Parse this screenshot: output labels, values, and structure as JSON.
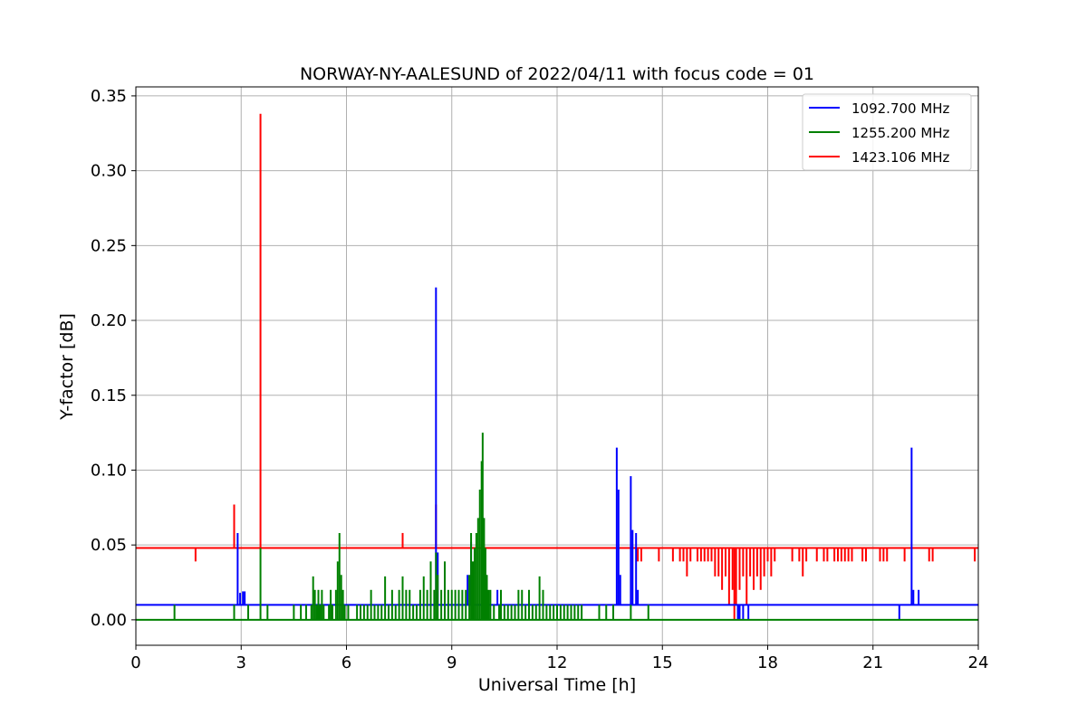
{
  "chart_data": {
    "type": "line",
    "title": "NORWAY-NY-AALESUND of 2022/04/11 with focus code = 01",
    "xlabel": "Universal Time [h]",
    "ylabel": "Y-factor [dB]",
    "xlim": [
      0,
      24
    ],
    "ylim": [
      -0.017,
      0.356
    ],
    "xticks": [
      0,
      3,
      6,
      9,
      12,
      15,
      18,
      21,
      24
    ],
    "xtick_labels": [
      "0",
      "3",
      "6",
      "9",
      "12",
      "15",
      "18",
      "21",
      "24"
    ],
    "yticks": [
      0.0,
      0.05,
      0.1,
      0.15,
      0.2,
      0.25,
      0.3,
      0.35
    ],
    "ytick_labels": [
      "0.00",
      "0.05",
      "0.10",
      "0.15",
      "0.20",
      "0.25",
      "0.30",
      "0.35"
    ],
    "grid": true,
    "legend_position": "top-right",
    "series": [
      {
        "name": "1092.700 MHz",
        "color": "#0000ff",
        "baseline": 0.01,
        "spikes": [
          [
            2.9,
            0.058
          ],
          [
            2.97,
            0.018
          ],
          [
            3.05,
            0.019
          ],
          [
            3.1,
            0.019
          ],
          [
            8.55,
            0.222
          ],
          [
            8.6,
            0.045
          ],
          [
            9.45,
            0.03
          ],
          [
            9.55,
            0.052
          ],
          [
            9.9,
            0.02
          ],
          [
            10.3,
            0.02
          ],
          [
            13.7,
            0.115
          ],
          [
            13.75,
            0.087
          ],
          [
            13.8,
            0.03
          ],
          [
            14.1,
            0.096
          ],
          [
            14.15,
            0.06
          ],
          [
            14.25,
            0.058
          ],
          [
            14.3,
            0.02
          ],
          [
            17.15,
            0.0
          ],
          [
            17.2,
            0.0
          ],
          [
            17.3,
            0.0
          ],
          [
            17.45,
            0.0
          ],
          [
            21.75,
            0.0
          ],
          [
            22.1,
            0.115
          ],
          [
            22.15,
            0.02
          ],
          [
            22.3,
            0.02
          ]
        ]
      },
      {
        "name": "1255.200 MHz",
        "color": "#008000",
        "baseline": 0.0,
        "spikes": [
          [
            1.1,
            0.01
          ],
          [
            2.8,
            0.01
          ],
          [
            3.2,
            0.01
          ],
          [
            3.55,
            0.048
          ],
          [
            3.75,
            0.01
          ],
          [
            4.5,
            0.01
          ],
          [
            4.7,
            0.01
          ],
          [
            4.85,
            0.01
          ],
          [
            5.0,
            0.01
          ],
          [
            5.05,
            0.029
          ],
          [
            5.1,
            0.02
          ],
          [
            5.15,
            0.01
          ],
          [
            5.2,
            0.02
          ],
          [
            5.25,
            0.01
          ],
          [
            5.3,
            0.02
          ],
          [
            5.35,
            0.01
          ],
          [
            5.5,
            0.01
          ],
          [
            5.55,
            0.02
          ],
          [
            5.6,
            0.01
          ],
          [
            5.7,
            0.02
          ],
          [
            5.75,
            0.039
          ],
          [
            5.8,
            0.058
          ],
          [
            5.85,
            0.03
          ],
          [
            5.9,
            0.02
          ],
          [
            5.95,
            0.01
          ],
          [
            6.05,
            0.01
          ],
          [
            6.3,
            0.01
          ],
          [
            6.4,
            0.01
          ],
          [
            6.5,
            0.01
          ],
          [
            6.6,
            0.01
          ],
          [
            6.7,
            0.02
          ],
          [
            6.8,
            0.01
          ],
          [
            6.9,
            0.01
          ],
          [
            7.0,
            0.01
          ],
          [
            7.1,
            0.029
          ],
          [
            7.2,
            0.01
          ],
          [
            7.3,
            0.02
          ],
          [
            7.4,
            0.01
          ],
          [
            7.5,
            0.02
          ],
          [
            7.6,
            0.029
          ],
          [
            7.7,
            0.02
          ],
          [
            7.8,
            0.02
          ],
          [
            7.9,
            0.01
          ],
          [
            8.0,
            0.01
          ],
          [
            8.1,
            0.02
          ],
          [
            8.2,
            0.029
          ],
          [
            8.3,
            0.02
          ],
          [
            8.4,
            0.039
          ],
          [
            8.5,
            0.02
          ],
          [
            8.55,
            0.045
          ],
          [
            8.6,
            0.03
          ],
          [
            8.7,
            0.02
          ],
          [
            8.8,
            0.039
          ],
          [
            8.9,
            0.02
          ],
          [
            9.0,
            0.02
          ],
          [
            9.1,
            0.02
          ],
          [
            9.2,
            0.02
          ],
          [
            9.3,
            0.02
          ],
          [
            9.4,
            0.02
          ],
          [
            9.5,
            0.03
          ],
          [
            9.55,
            0.058
          ],
          [
            9.6,
            0.039
          ],
          [
            9.65,
            0.048
          ],
          [
            9.7,
            0.058
          ],
          [
            9.75,
            0.068
          ],
          [
            9.8,
            0.087
          ],
          [
            9.85,
            0.106
          ],
          [
            9.88,
            0.125
          ],
          [
            9.92,
            0.068
          ],
          [
            9.96,
            0.048
          ],
          [
            10.0,
            0.03
          ],
          [
            10.05,
            0.02
          ],
          [
            10.1,
            0.02
          ],
          [
            10.2,
            0.01
          ],
          [
            10.35,
            0.01
          ],
          [
            10.4,
            0.02
          ],
          [
            10.5,
            0.01
          ],
          [
            10.6,
            0.01
          ],
          [
            10.7,
            0.01
          ],
          [
            10.8,
            0.01
          ],
          [
            10.9,
            0.02
          ],
          [
            11.0,
            0.02
          ],
          [
            11.1,
            0.01
          ],
          [
            11.2,
            0.02
          ],
          [
            11.3,
            0.01
          ],
          [
            11.4,
            0.01
          ],
          [
            11.5,
            0.029
          ],
          [
            11.6,
            0.02
          ],
          [
            11.7,
            0.01
          ],
          [
            11.8,
            0.01
          ],
          [
            11.9,
            0.01
          ],
          [
            12.0,
            0.01
          ],
          [
            12.1,
            0.01
          ],
          [
            12.2,
            0.01
          ],
          [
            12.3,
            0.01
          ],
          [
            12.4,
            0.01
          ],
          [
            12.5,
            0.01
          ],
          [
            12.6,
            0.01
          ],
          [
            12.7,
            0.01
          ],
          [
            13.2,
            0.01
          ],
          [
            13.4,
            0.01
          ],
          [
            13.6,
            0.01
          ],
          [
            14.1,
            0.01
          ],
          [
            14.6,
            0.01
          ]
        ]
      },
      {
        "name": "1423.106 MHz",
        "color": "#ff0000",
        "baseline": 0.048,
        "spikes": [
          [
            1.7,
            0.039
          ],
          [
            2.8,
            0.077
          ],
          [
            3.55,
            0.338
          ],
          [
            7.6,
            0.058
          ],
          [
            8.55,
            0.077
          ],
          [
            14.3,
            0.039
          ],
          [
            14.4,
            0.039
          ],
          [
            14.9,
            0.039
          ],
          [
            15.3,
            0.039
          ],
          [
            15.5,
            0.039
          ],
          [
            15.6,
            0.039
          ],
          [
            15.7,
            0.029
          ],
          [
            15.8,
            0.039
          ],
          [
            16.0,
            0.039
          ],
          [
            16.1,
            0.039
          ],
          [
            16.2,
            0.039
          ],
          [
            16.3,
            0.039
          ],
          [
            16.4,
            0.039
          ],
          [
            16.5,
            0.029
          ],
          [
            16.6,
            0.029
          ],
          [
            16.7,
            0.02
          ],
          [
            16.8,
            0.029
          ],
          [
            16.9,
            0.01
          ],
          [
            17.0,
            0.02
          ],
          [
            17.05,
            0.0
          ],
          [
            17.1,
            0.01
          ],
          [
            17.2,
            0.02
          ],
          [
            17.3,
            0.029
          ],
          [
            17.4,
            0.01
          ],
          [
            17.5,
            0.029
          ],
          [
            17.6,
            0.02
          ],
          [
            17.7,
            0.029
          ],
          [
            17.8,
            0.02
          ],
          [
            17.9,
            0.029
          ],
          [
            18.0,
            0.039
          ],
          [
            18.1,
            0.029
          ],
          [
            18.2,
            0.039
          ],
          [
            18.7,
            0.039
          ],
          [
            18.9,
            0.039
          ],
          [
            19.0,
            0.029
          ],
          [
            19.1,
            0.039
          ],
          [
            19.4,
            0.039
          ],
          [
            19.6,
            0.039
          ],
          [
            19.7,
            0.039
          ],
          [
            19.9,
            0.039
          ],
          [
            20.0,
            0.039
          ],
          [
            20.1,
            0.039
          ],
          [
            20.2,
            0.039
          ],
          [
            20.3,
            0.039
          ],
          [
            20.4,
            0.039
          ],
          [
            20.7,
            0.039
          ],
          [
            20.8,
            0.039
          ],
          [
            21.2,
            0.039
          ],
          [
            21.3,
            0.039
          ],
          [
            21.4,
            0.039
          ],
          [
            21.9,
            0.039
          ],
          [
            22.6,
            0.039
          ],
          [
            22.7,
            0.039
          ],
          [
            23.9,
            0.039
          ]
        ]
      }
    ]
  }
}
